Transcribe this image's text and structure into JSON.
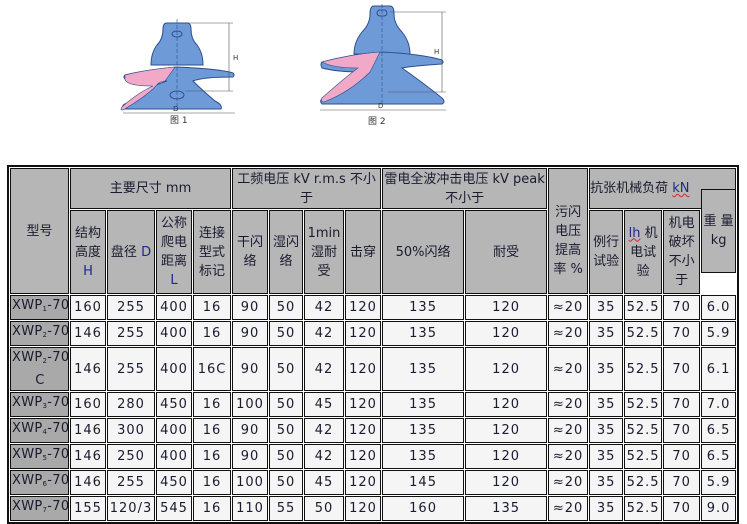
{
  "figures": [
    {
      "caption": "图 1",
      "h_label": "H",
      "d_label": "D"
    },
    {
      "caption": "图 2",
      "h_label": "H",
      "d_label": "D"
    }
  ],
  "colors": {
    "insulator_blue": "#6f9ad8",
    "insulator_pink": "#f2a9c8",
    "header_gray": "#b6b6b6",
    "model_gray": "#a9a9a9",
    "cell_bg": "#f5f5f5"
  },
  "table": {
    "header": {
      "model": "型号",
      "main_dims": "主要尺寸  mm",
      "power_freq": "工频电压 kV r.m.s 不小于",
      "lightning": "雷电全波冲击电压 kV peak 不小于",
      "pollution": "污闪电压提高率  %",
      "mech_load": "抗张机械负荷",
      "mech_load_unit": "kN",
      "weight": "重 量 kg",
      "sub": {
        "height": "结构高度",
        "height_sym": "H",
        "diameter": "盘径",
        "diameter_sym": "D",
        "creepage": "公称爬电距离",
        "creepage_sym": "L",
        "coupling": "连接型式标记",
        "dry": "干闪络",
        "wet": "湿闪络",
        "min1_num": "1min",
        "min1": "湿耐受",
        "puncture": "击穿",
        "flash50": "50%闪络",
        "withstand": "耐受",
        "routine": "例行试验",
        "lh_sym": "lh",
        "lh": "机电试验",
        "em_fail": "机电破坏不小于"
      }
    },
    "rows": [
      {
        "model": {
          "prefix": "XWP",
          "sub": "1",
          "suffix": "-70",
          "variant": ""
        },
        "values": [
          "160",
          "255",
          "400",
          "16",
          "90",
          "50",
          "42",
          "120",
          "135",
          "120",
          "≈20",
          "35",
          "52.5",
          "70",
          "6.0"
        ]
      },
      {
        "model": {
          "prefix": "XWP",
          "sub": "2",
          "suffix": "-70",
          "variant": ""
        },
        "values": [
          "146",
          "255",
          "400",
          "16",
          "90",
          "50",
          "42",
          "120",
          "135",
          "120",
          "≈20",
          "35",
          "52.5",
          "70",
          "5.9"
        ]
      },
      {
        "model": {
          "prefix": "XWP",
          "sub": "2",
          "suffix": "-70",
          "variant": "C"
        },
        "values": [
          "146",
          "255",
          "400",
          "16C",
          "90",
          "50",
          "42",
          "120",
          "135",
          "120",
          "≈20",
          "35",
          "52.5",
          "70",
          "6.1"
        ]
      },
      {
        "model": {
          "prefix": "XWP",
          "sub": "3",
          "suffix": "-70",
          "variant": ""
        },
        "values": [
          "160",
          "280",
          "450",
          "16",
          "100",
          "50",
          "45",
          "120",
          "135",
          "120",
          "≈20",
          "35",
          "52.5",
          "70",
          "7.0"
        ]
      },
      {
        "model": {
          "prefix": "XWP",
          "sub": "4",
          "suffix": "-70",
          "variant": ""
        },
        "values": [
          "146",
          "300",
          "400",
          "16",
          "90",
          "50",
          "42",
          "120",
          "135",
          "120",
          "≈20",
          "35",
          "52.5",
          "70",
          "6.5"
        ]
      },
      {
        "model": {
          "prefix": "XWP",
          "sub": "5",
          "suffix": "-70",
          "variant": ""
        },
        "values": [
          "146",
          "250",
          "400",
          "16",
          "90",
          "50",
          "42",
          "120",
          "135",
          "120",
          "≈20",
          "35",
          "52.5",
          "70",
          "6.5"
        ]
      },
      {
        "model": {
          "prefix": "XWP",
          "sub": "6",
          "suffix": "-70",
          "variant": ""
        },
        "values": [
          "146",
          "255",
          "450",
          "16",
          "100",
          "50",
          "45",
          "120",
          "145",
          "120",
          "≈20",
          "35",
          "52.5",
          "70",
          "5.9"
        ]
      },
      {
        "model": {
          "prefix": "XWP",
          "sub": "7",
          "suffix": "-70",
          "variant": ""
        },
        "values": [
          "155",
          "120/3",
          "545",
          "16",
          "110",
          "55",
          "50",
          "120",
          "160",
          "135",
          "≈20",
          "35",
          "52.5",
          "70",
          "9.0"
        ]
      }
    ]
  }
}
